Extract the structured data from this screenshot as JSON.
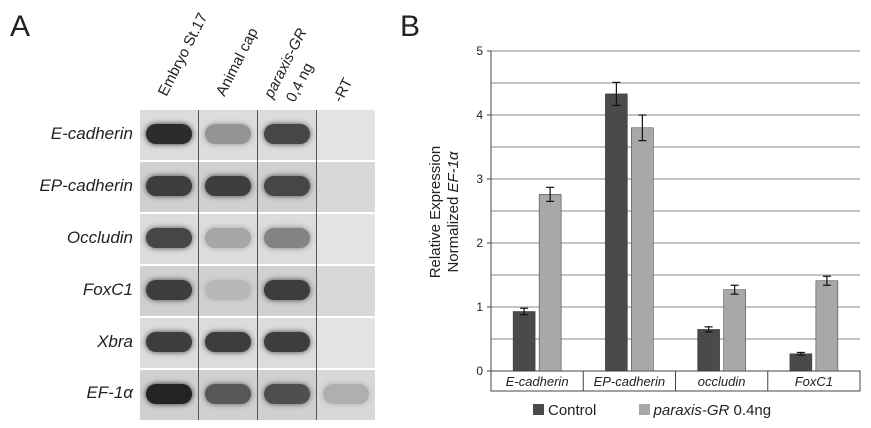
{
  "panel_a": {
    "letter": "A",
    "columns": [
      {
        "plain": "Embryo St.17",
        "italic": ""
      },
      {
        "plain": "Animal cap",
        "italic": ""
      },
      {
        "plain": "",
        "italic": "paraxis-GR",
        "line2": "0,4 ng"
      },
      {
        "plain": "-RT",
        "italic": ""
      }
    ],
    "genes": [
      {
        "prefix": "E-cadherin",
        "suffix": ""
      },
      {
        "prefix": "EP-cadherin",
        "suffix": ""
      },
      {
        "prefix": "Occludin",
        "suffix": ""
      },
      {
        "prefix": "FoxC1",
        "suffix": ""
      },
      {
        "prefix": "Xbra",
        "suffix": ""
      },
      {
        "prefix": "EF-",
        "suffix": "1α"
      }
    ],
    "band_intensity": [
      [
        0.95,
        0.35,
        0.8,
        0.0
      ],
      [
        0.85,
        0.85,
        0.8,
        0.0
      ],
      [
        0.8,
        0.25,
        0.45,
        0.0
      ],
      [
        0.85,
        0.15,
        0.85,
        0.0
      ],
      [
        0.85,
        0.85,
        0.85,
        0.0
      ],
      [
        1.0,
        0.7,
        0.75,
        0.2
      ]
    ]
  },
  "panel_b": {
    "letter": "B",
    "ylabel_line1": "Relative Expression",
    "ylabel_line2_plain": "Normalized ",
    "ylabel_line2_italic": "EF-1α",
    "legend": {
      "control": "Control",
      "treated_italic": "paraxis-GR",
      "treated_plain": " 0.4ng"
    }
  },
  "chart_data": {
    "type": "bar",
    "categories": [
      "E-cadherin",
      "EP-cadherin",
      "occludin",
      "FoxC1"
    ],
    "series": [
      {
        "name": "Control",
        "values": [
          0.93,
          4.33,
          0.65,
          0.27
        ],
        "errors": [
          0.05,
          0.18,
          0.04,
          0.02
        ],
        "color": "#4a4a4a"
      },
      {
        "name": "paraxis-GR 0.4ng",
        "values": [
          2.76,
          3.8,
          1.27,
          1.41
        ],
        "errors": [
          0.11,
          0.2,
          0.07,
          0.07
        ],
        "color": "#a8a8a8"
      }
    ],
    "ylim": [
      0,
      5
    ],
    "yticks": [
      0,
      1,
      2,
      3,
      4,
      5
    ],
    "gridlines_minor": 0.5,
    "legend_position": "bottom"
  }
}
